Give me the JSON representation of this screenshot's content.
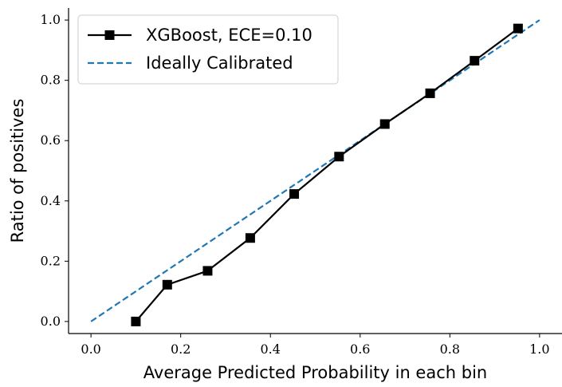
{
  "chart_data": {
    "type": "line",
    "xlabel": "Average Predicted Probability in each bin",
    "ylabel": "Ratio of positives",
    "xlim": [
      -0.05,
      1.05
    ],
    "ylim": [
      -0.04,
      1.04
    ],
    "xticks": [
      "0.0",
      "0.2",
      "0.4",
      "0.6",
      "0.8",
      "1.0"
    ],
    "yticks": [
      "0.0",
      "0.2",
      "0.4",
      "0.6",
      "0.8",
      "1.0"
    ],
    "grid": false,
    "legend_position": "upper-left",
    "series": [
      {
        "name": "XGBoost, ECE=0.10",
        "style": "solid line with square markers",
        "color": "#000000",
        "x": [
          0.1,
          0.17,
          0.26,
          0.355,
          0.453,
          0.553,
          0.655,
          0.756,
          0.855,
          0.952
        ],
        "y": [
          0.0,
          0.122,
          0.168,
          0.277,
          0.423,
          0.547,
          0.655,
          0.757,
          0.865,
          0.972
        ]
      },
      {
        "name": "Ideally Calibrated",
        "style": "dashed line",
        "color": "#1f77b4",
        "x": [
          0.0,
          1.0
        ],
        "y": [
          0.0,
          1.0
        ]
      }
    ]
  }
}
